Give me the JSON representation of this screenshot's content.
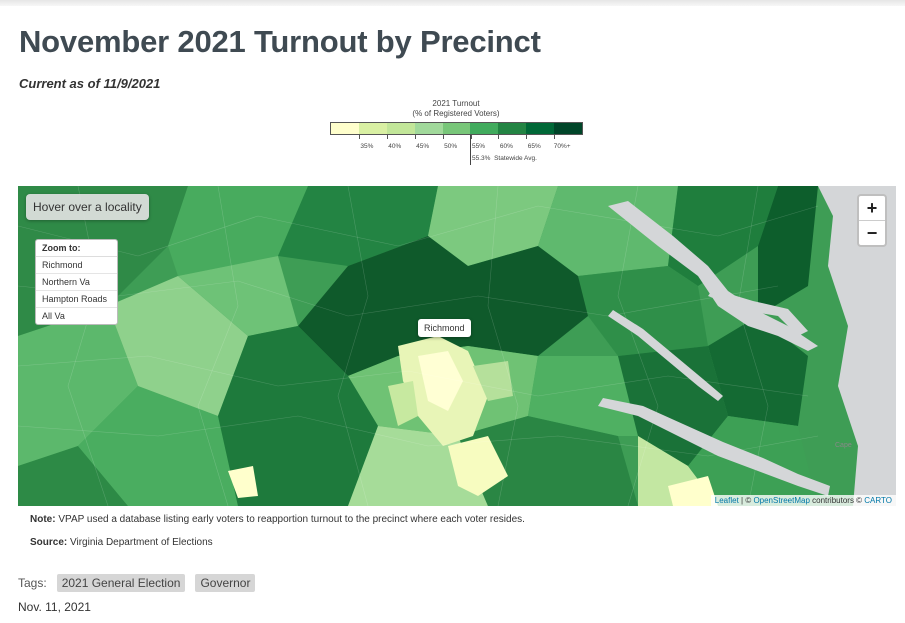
{
  "title": "November 2021 Turnout by Precinct",
  "current_as_of": "Current as of 11/9/2021",
  "legend": {
    "title_line1": "2021 Turnout",
    "title_line2": "(% of Registered Voters)",
    "colors": [
      "#ffffcc",
      "#d9f0a3",
      "#c2e699",
      "#a1d99b",
      "#78c679",
      "#41ab5d",
      "#238443",
      "#006837",
      "#004529"
    ],
    "ticks": [
      "35%",
      "40%",
      "45%",
      "50%",
      "55%",
      "60%",
      "65%",
      "70%+"
    ],
    "statewide_value": "55.3%",
    "statewide_label": "Statewide Avg."
  },
  "map": {
    "hover_text": "Hover over a locality",
    "zoom_title": "Zoom to:",
    "zoom_items": [
      "Richmond",
      "Northern Va",
      "Hampton Roads",
      "All Va"
    ],
    "zoom_in": "+",
    "zoom_out": "−",
    "city_label": "Richmond",
    "place_label": "Cape",
    "attribution": {
      "leaflet": "Leaflet",
      "sep1": " | © ",
      "osm": "OpenStreetMap",
      "contrib": " contributors © ",
      "carto": "CARTO"
    }
  },
  "note": {
    "label": "Note:",
    "text": " VPAP used a database listing early voters to reapportion turnout to the precinct where each voter resides."
  },
  "source": {
    "label": "Source:",
    "text": " Virginia Department of Elections"
  },
  "tags": {
    "label": "Tags:",
    "items": [
      "2021 General Election",
      "Governor"
    ]
  },
  "date": "Nov. 11, 2021"
}
